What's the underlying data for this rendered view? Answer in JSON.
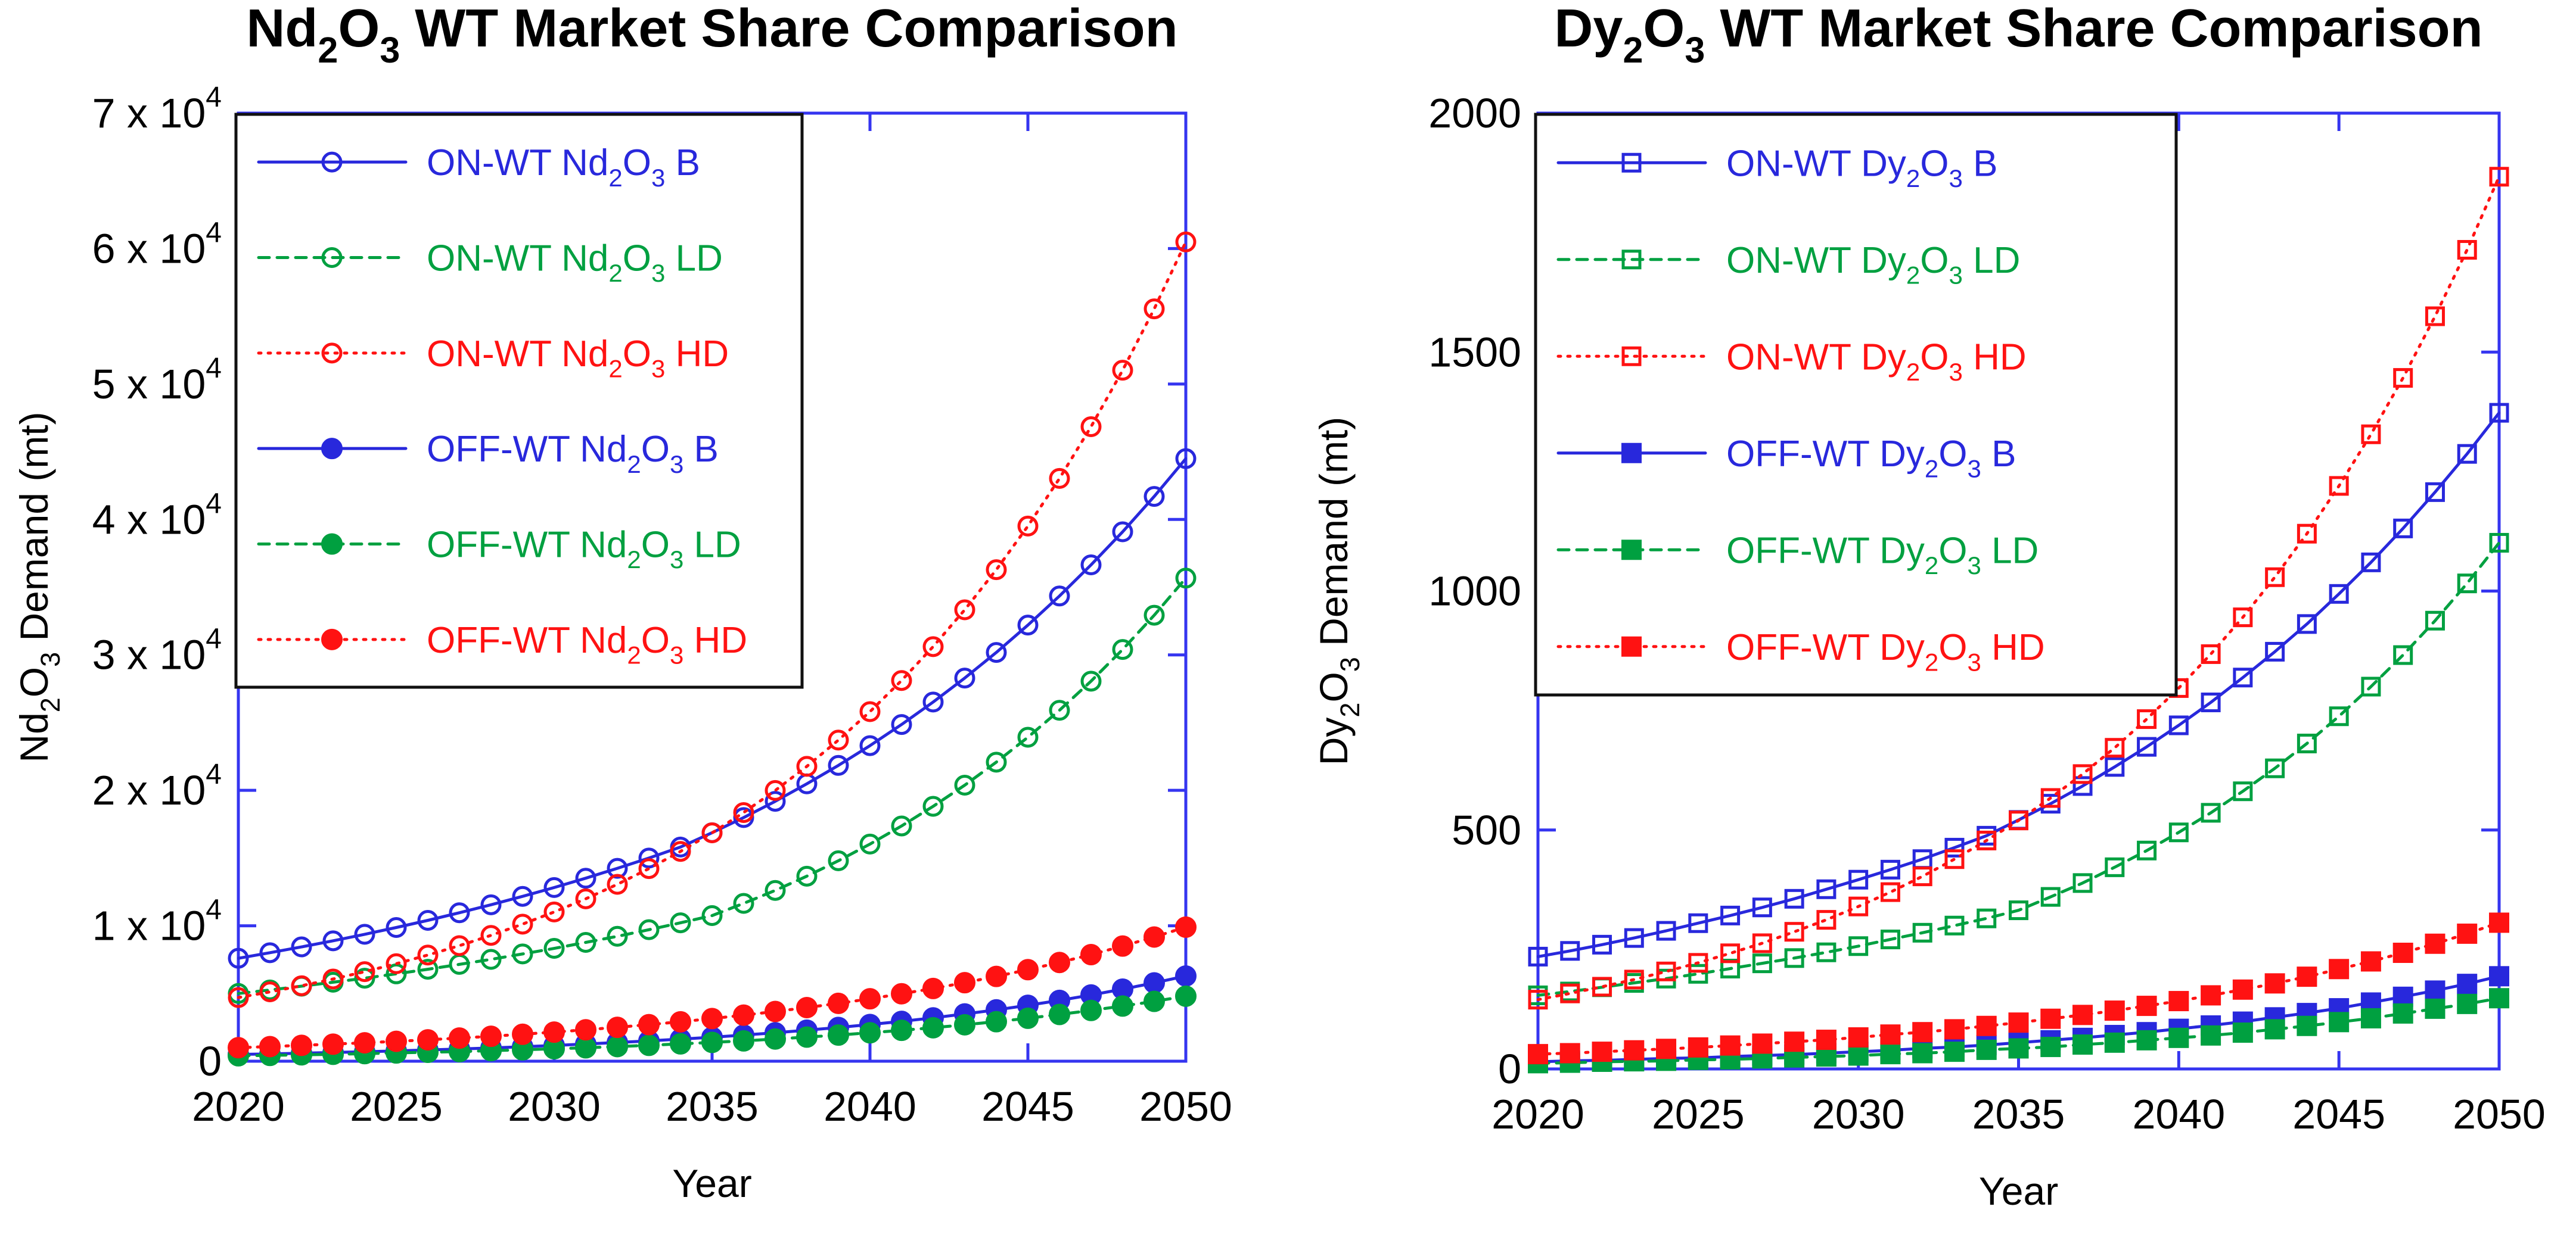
{
  "colors": {
    "axis": "#3535f0",
    "blue": "#2828dc",
    "green": "#00a040",
    "red": "#ff1212",
    "text": "#000000",
    "legend_border": "#111111",
    "background": "#ffffff"
  },
  "chart_data": [
    {
      "type": "line",
      "id": "nd",
      "title_plain": "Nd2O3 WT Market Share Comparison",
      "title_parts": [
        {
          "t": "Nd"
        },
        {
          "t": "2",
          "sub": true
        },
        {
          "t": "O"
        },
        {
          "t": "3",
          "sub": true
        },
        {
          "t": " WT Market Share Comparison"
        }
      ],
      "ylabel_plain": "Nd2O3 Demand (mt)",
      "ylabel_parts": [
        {
          "t": "Nd"
        },
        {
          "t": "2",
          "sub": true
        },
        {
          "t": "O"
        },
        {
          "t": "3",
          "sub": true
        },
        {
          "t": " Demand (mt)"
        }
      ],
      "xlabel": "Year",
      "x": [
        2020,
        2021,
        2022,
        2023,
        2024,
        2025,
        2026,
        2027,
        2028,
        2029,
        2030,
        2031,
        2032,
        2033,
        2034,
        2035,
        2036,
        2037,
        2038,
        2039,
        2040,
        2041,
        2042,
        2043,
        2044,
        2045,
        2046,
        2047,
        2048,
        2049,
        2050
      ],
      "xticks": [
        2020,
        2025,
        2030,
        2035,
        2040,
        2045,
        2050
      ],
      "xlim": [
        2020,
        2050
      ],
      "ylim": [
        0,
        70000
      ],
      "grid": false,
      "legend_position": "top-left-inside",
      "marker": "circle",
      "yticks": [
        {
          "v": 0,
          "parts": [
            {
              "t": "0"
            }
          ]
        },
        {
          "v": 10000,
          "parts": [
            {
              "t": "1 x 10"
            },
            {
              "t": "4",
              "sup": true
            }
          ]
        },
        {
          "v": 20000,
          "parts": [
            {
              "t": "2 x 10"
            },
            {
              "t": "4",
              "sup": true
            }
          ]
        },
        {
          "v": 30000,
          "parts": [
            {
              "t": "3 x 10"
            },
            {
              "t": "4",
              "sup": true
            }
          ]
        },
        {
          "v": 40000,
          "parts": [
            {
              "t": "4 x 10"
            },
            {
              "t": "4",
              "sup": true
            }
          ]
        },
        {
          "v": 50000,
          "parts": [
            {
              "t": "5 x 10"
            },
            {
              "t": "4",
              "sup": true
            }
          ]
        },
        {
          "v": 60000,
          "parts": [
            {
              "t": "6 x 10"
            },
            {
              "t": "4",
              "sup": true
            }
          ]
        },
        {
          "v": 70000,
          "parts": [
            {
              "t": "7 x 10"
            },
            {
              "t": "4",
              "sup": true
            }
          ]
        }
      ],
      "series": [
        {
          "key": "on-wt-nd2o3-b",
          "label_plain": "ON-WT Nd2O3 B",
          "label_parts": [
            {
              "t": "ON-WT Nd"
            },
            {
              "t": "2",
              "sub": true
            },
            {
              "t": "O"
            },
            {
              "t": "3",
              "sub": true
            },
            {
              "t": " B"
            }
          ],
          "color": "blue",
          "filled": false,
          "line_style": "solid",
          "values": [
            7600,
            8010,
            8440,
            8890,
            9370,
            9870,
            10400,
            10960,
            11550,
            12170,
            12820,
            13510,
            14240,
            15000,
            15810,
            16870,
            17990,
            19190,
            20480,
            21840,
            23300,
            24860,
            26520,
            28290,
            30180,
            32200,
            34350,
            36650,
            39090,
            41700,
            44490
          ]
        },
        {
          "key": "on-wt-nd2o3-ld",
          "label_plain": "ON-WT Nd2O3 LD",
          "label_parts": [
            {
              "t": "ON-WT Nd"
            },
            {
              "t": "2",
              "sub": true
            },
            {
              "t": "O"
            },
            {
              "t": "3",
              "sub": true
            },
            {
              "t": " LD"
            }
          ],
          "color": "green",
          "filled": false,
          "line_style": "dashed",
          "values": [
            5000,
            5260,
            5540,
            5830,
            6130,
            6450,
            6790,
            7150,
            7520,
            7920,
            8330,
            8770,
            9220,
            9710,
            10220,
            10750,
            11650,
            12610,
            13660,
            14800,
            16030,
            17370,
            18820,
            20380,
            22080,
            23920,
            25910,
            28060,
            30400,
            32930,
            35670
          ]
        },
        {
          "key": "on-wt-nd2o3-hd",
          "label_plain": "ON-WT Nd2O3 HD",
          "label_parts": [
            {
              "t": "ON-WT Nd"
            },
            {
              "t": "2",
              "sub": true
            },
            {
              "t": "O"
            },
            {
              "t": "3",
              "sub": true
            },
            {
              "t": " HD"
            }
          ],
          "color": "red",
          "filled": false,
          "line_style": "dotted",
          "values": [
            4700,
            5120,
            5570,
            6070,
            6610,
            7200,
            7840,
            8530,
            9290,
            10120,
            11020,
            11990,
            13060,
            14220,
            15490,
            16860,
            18360,
            19990,
            21770,
            23710,
            25810,
            28110,
            30610,
            33330,
            36290,
            39510,
            43030,
            46850,
            51020,
            55550,
            60490
          ]
        },
        {
          "key": "off-wt-nd2o3-b",
          "label_plain": "OFF-WT Nd2O3 B",
          "label_parts": [
            {
              "t": "OFF-WT Nd"
            },
            {
              "t": "2",
              "sub": true
            },
            {
              "t": "O"
            },
            {
              "t": "3",
              "sub": true
            },
            {
              "t": " B"
            }
          ],
          "color": "blue",
          "filled": true,
          "line_style": "solid",
          "values": [
            500,
            540,
            590,
            640,
            700,
            760,
            830,
            900,
            980,
            1070,
            1160,
            1270,
            1380,
            1500,
            1630,
            1770,
            1930,
            2100,
            2290,
            2490,
            2710,
            2940,
            3200,
            3490,
            3790,
            4130,
            4490,
            4890,
            5320,
            5780,
            6290
          ]
        },
        {
          "key": "off-wt-nd2o3-ld",
          "label_plain": "OFF-WT Nd2O3 LD",
          "label_parts": [
            {
              "t": "OFF-WT Nd"
            },
            {
              "t": "2",
              "sub": true
            },
            {
              "t": "O"
            },
            {
              "t": "3",
              "sub": true
            },
            {
              "t": " LD"
            }
          ],
          "color": "green",
          "filled": true,
          "line_style": "dashed",
          "values": [
            400,
            430,
            470,
            510,
            560,
            610,
            660,
            710,
            780,
            840,
            920,
            990,
            1080,
            1170,
            1280,
            1390,
            1500,
            1640,
            1780,
            1930,
            2100,
            2280,
            2470,
            2690,
            2920,
            3170,
            3450,
            3750,
            4070,
            4420,
            4800
          ]
        },
        {
          "key": "off-wt-nd2o3-hd",
          "label_plain": "OFF-WT Nd2O3 HD",
          "label_parts": [
            {
              "t": "OFF-WT Nd"
            },
            {
              "t": "2",
              "sub": true
            },
            {
              "t": "O"
            },
            {
              "t": "3",
              "sub": true
            },
            {
              "t": " HD"
            }
          ],
          "color": "red",
          "filled": true,
          "line_style": "dotted",
          "values": [
            1000,
            1080,
            1170,
            1260,
            1360,
            1470,
            1580,
            1710,
            1840,
            1990,
            2150,
            2320,
            2500,
            2700,
            2910,
            3150,
            3400,
            3670,
            3960,
            4270,
            4610,
            4980,
            5370,
            5800,
            6260,
            6760,
            7290,
            7870,
            8500,
            9170,
            9900
          ]
        }
      ]
    },
    {
      "type": "line",
      "id": "dy",
      "title_plain": "Dy2O3 WT Market Share Comparison",
      "title_parts": [
        {
          "t": "Dy"
        },
        {
          "t": "2",
          "sub": true
        },
        {
          "t": "O"
        },
        {
          "t": "3",
          "sub": true
        },
        {
          "t": " WT Market Share Comparison"
        }
      ],
      "ylabel_plain": "Dy2O3 Demand (mt)",
      "ylabel_parts": [
        {
          "t": "Dy"
        },
        {
          "t": "2",
          "sub": true
        },
        {
          "t": "O"
        },
        {
          "t": "3",
          "sub": true
        },
        {
          "t": " Demand (mt)"
        }
      ],
      "xlabel": "Year",
      "x": [
        2020,
        2021,
        2022,
        2023,
        2024,
        2025,
        2026,
        2027,
        2028,
        2029,
        2030,
        2031,
        2032,
        2033,
        2034,
        2035,
        2036,
        2037,
        2038,
        2039,
        2040,
        2041,
        2042,
        2043,
        2044,
        2045,
        2046,
        2047,
        2048,
        2049,
        2050
      ],
      "xticks": [
        2020,
        2025,
        2030,
        2035,
        2040,
        2045,
        2050
      ],
      "xlim": [
        2020,
        2050
      ],
      "ylim": [
        0,
        2000
      ],
      "grid": false,
      "legend_position": "top-left-inside",
      "marker": "square",
      "yticks": [
        {
          "v": 0,
          "parts": [
            {
              "t": "0"
            }
          ]
        },
        {
          "v": 500,
          "parts": [
            {
              "t": "500"
            }
          ]
        },
        {
          "v": 1000,
          "parts": [
            {
              "t": "1000"
            }
          ]
        },
        {
          "v": 1500,
          "parts": [
            {
              "t": "1500"
            }
          ]
        },
        {
          "v": 2000,
          "parts": [
            {
              "t": "2000"
            }
          ]
        }
      ],
      "series": [
        {
          "key": "on-wt-dy2o3-b",
          "label_plain": "ON-WT Dy2O3 B",
          "label_parts": [
            {
              "t": "ON-WT Dy"
            },
            {
              "t": "2",
              "sub": true
            },
            {
              "t": "O"
            },
            {
              "t": "3",
              "sub": true
            },
            {
              "t": " B"
            }
          ],
          "color": "blue",
          "filled": false,
          "line_style": "solid",
          "values": [
            235,
            247,
            260,
            274,
            289,
            305,
            321,
            338,
            356,
            376,
            396,
            417,
            439,
            463,
            488,
            521,
            555,
            592,
            632,
            674,
            719,
            767,
            819,
            873,
            931,
            994,
            1060,
            1131,
            1207,
            1287,
            1373
          ]
        },
        {
          "key": "on-wt-dy2o3-ld",
          "label_plain": "ON-WT Dy2O3 LD",
          "label_parts": [
            {
              "t": "ON-WT Dy"
            },
            {
              "t": "2",
              "sub": true
            },
            {
              "t": "O"
            },
            {
              "t": "3",
              "sub": true
            },
            {
              "t": " LD"
            }
          ],
          "color": "green",
          "filled": false,
          "line_style": "dashed",
          "values": [
            154,
            162,
            171,
            180,
            189,
            199,
            210,
            221,
            232,
            244,
            257,
            271,
            285,
            300,
            315,
            332,
            360,
            389,
            422,
            457,
            495,
            536,
            581,
            629,
            681,
            738,
            800,
            866,
            938,
            1016,
            1101
          ]
        },
        {
          "key": "on-wt-dy2o3-hd",
          "label_plain": "ON-WT Dy2O3 HD",
          "label_parts": [
            {
              "t": "ON-WT Dy"
            },
            {
              "t": "2",
              "sub": true
            },
            {
              "t": "O"
            },
            {
              "t": "3",
              "sub": true
            },
            {
              "t": " HD"
            }
          ],
          "color": "red",
          "filled": false,
          "line_style": "dotted",
          "values": [
            145,
            158,
            172,
            187,
            204,
            222,
            242,
            263,
            287,
            312,
            340,
            370,
            403,
            439,
            478,
            520,
            567,
            617,
            672,
            732,
            797,
            868,
            945,
            1029,
            1120,
            1220,
            1328,
            1446,
            1575,
            1714,
            1867
          ]
        },
        {
          "key": "off-wt-dy2o3-b",
          "label_plain": "OFF-WT Dy2O3 B",
          "label_parts": [
            {
              "t": "OFF-WT Dy"
            },
            {
              "t": "2",
              "sub": true
            },
            {
              "t": "O"
            },
            {
              "t": "3",
              "sub": true
            },
            {
              "t": " B"
            }
          ],
          "color": "blue",
          "filled": true,
          "line_style": "solid",
          "values": [
            15,
            17,
            18,
            20,
            22,
            23,
            26,
            28,
            30,
            33,
            36,
            39,
            43,
            46,
            50,
            55,
            60,
            65,
            71,
            77,
            84,
            91,
            99,
            108,
            117,
            127,
            139,
            151,
            164,
            178,
            194
          ]
        },
        {
          "key": "off-wt-dy2o3-ld",
          "label_plain": "OFF-WT Dy2O3 LD",
          "label_parts": [
            {
              "t": "OFF-WT Dy"
            },
            {
              "t": "2",
              "sub": true
            },
            {
              "t": "O"
            },
            {
              "t": "3",
              "sub": true
            },
            {
              "t": " LD"
            }
          ],
          "color": "green",
          "filled": true,
          "line_style": "dashed",
          "values": [
            12,
            13,
            15,
            16,
            17,
            19,
            20,
            22,
            24,
            26,
            28,
            31,
            33,
            36,
            40,
            43,
            46,
            51,
            55,
            60,
            65,
            70,
            76,
            83,
            90,
            98,
            106,
            116,
            126,
            136,
            148
          ]
        },
        {
          "key": "off-wt-dy2o3-hd",
          "label_plain": "OFF-WT Dy2O3 HD",
          "label_parts": [
            {
              "t": "OFF-WT Dy"
            },
            {
              "t": "2",
              "sub": true
            },
            {
              "t": "O"
            },
            {
              "t": "3",
              "sub": true
            },
            {
              "t": " HD"
            }
          ],
          "color": "red",
          "filled": true,
          "line_style": "dotted",
          "values": [
            31,
            33,
            36,
            39,
            42,
            45,
            49,
            53,
            57,
            61,
            66,
            72,
            77,
            83,
            90,
            97,
            105,
            113,
            122,
            132,
            142,
            154,
            166,
            179,
            193,
            209,
            225,
            243,
            262,
            283,
            306
          ]
        }
      ]
    }
  ]
}
